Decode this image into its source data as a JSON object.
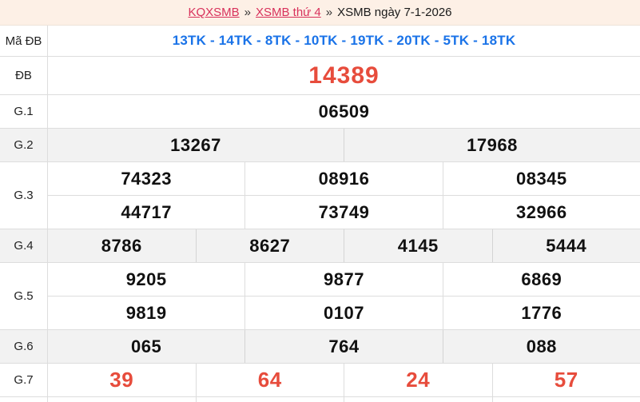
{
  "breadcrumb": {
    "links": [
      {
        "label": "KQXSMB"
      },
      {
        "label": "XSMB thứ 4"
      }
    ],
    "separator": "»",
    "current": "XSMB ngày 7-1-2026"
  },
  "table": {
    "rows": [
      {
        "label": "Mã ĐB",
        "values": [
          "13TK - 14TK - 8TK - 10TK - 19TK - 20TK - 5TK - 18TK"
        ]
      },
      {
        "label": "ĐB",
        "values": [
          "14389"
        ]
      },
      {
        "label": "G.1",
        "values": [
          "06509"
        ]
      },
      {
        "label": "G.2",
        "values": [
          "13267",
          "17968"
        ]
      },
      {
        "label": "G.3",
        "values": [
          [
            "74323",
            "08916",
            "08345"
          ],
          [
            "44717",
            "73749",
            "32966"
          ]
        ]
      },
      {
        "label": "G.4",
        "values": [
          "8786",
          "8627",
          "4145",
          "5444"
        ]
      },
      {
        "label": "G.5",
        "values": [
          [
            "9205",
            "9877",
            "6869"
          ],
          [
            "9819",
            "0107",
            "1776"
          ]
        ]
      },
      {
        "label": "G.6",
        "values": [
          "065",
          "764",
          "088"
        ]
      },
      {
        "label": "G.7",
        "values": [
          "39",
          "64",
          "24",
          "57"
        ]
      }
    ]
  },
  "colors": {
    "header_bg": "#fdf0e6",
    "link_red": "#d8315b",
    "code_blue": "#1a73e8",
    "prize_red": "#e74c3c",
    "gray_row_bg": "#f2f2f2",
    "border": "#dddddd"
  }
}
